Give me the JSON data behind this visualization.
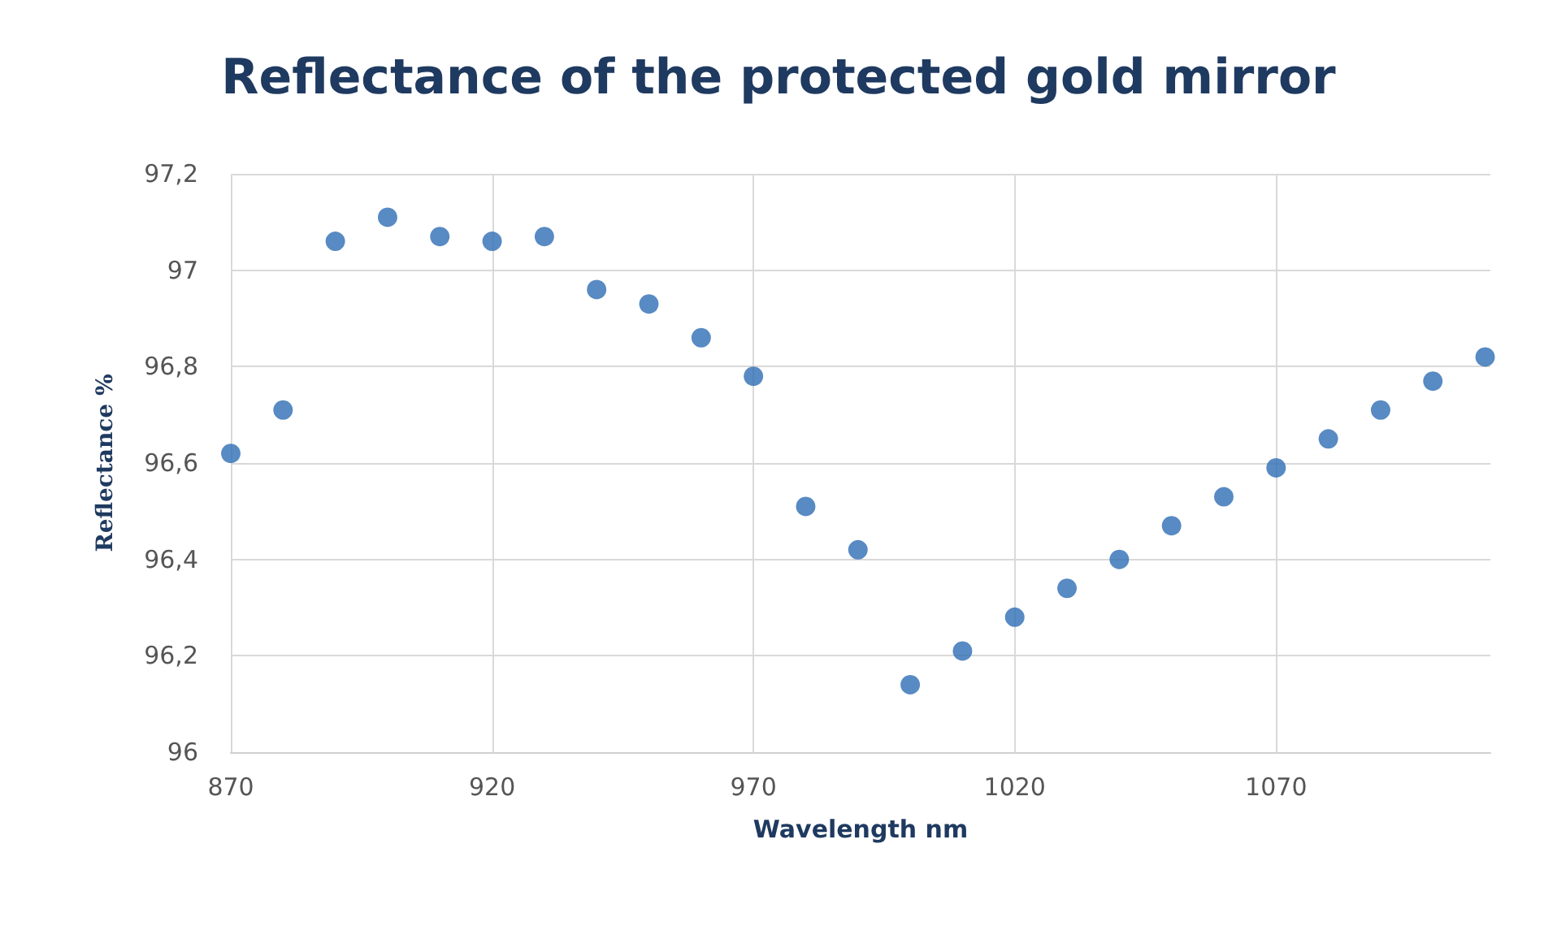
{
  "chart_data": {
    "type": "scatter",
    "title": "Reflectance of the protected gold mirror",
    "xlabel": "Wavelength nm",
    "ylabel": "Reflectance %",
    "x": [
      870,
      880,
      890,
      900,
      910,
      920,
      930,
      940,
      950,
      960,
      970,
      980,
      990,
      1000,
      1010,
      1020,
      1030,
      1040,
      1050,
      1060,
      1070,
      1080,
      1090,
      1100,
      1110
    ],
    "values": [
      96.62,
      96.71,
      97.06,
      97.11,
      97.07,
      97.06,
      97.07,
      96.96,
      96.93,
      96.86,
      96.78,
      96.51,
      96.42,
      96.14,
      96.21,
      96.28,
      96.34,
      96.4,
      96.47,
      96.53,
      96.59,
      96.65,
      96.71,
      96.77,
      96.82
    ],
    "color": "#2e6db4",
    "marker": "circle",
    "xlim": [
      870,
      1111
    ],
    "xticks": [
      870,
      920,
      970,
      1020,
      1070
    ],
    "ylim": [
      96,
      97.2
    ],
    "yticks": [
      96,
      {
        "value": 96.2,
        "label": "96,2"
      },
      {
        "value": 96.4,
        "label": "96,4"
      },
      {
        "value": 96.6,
        "label": "96,6"
      },
      {
        "value": 96.8,
        "label": "96,8"
      },
      97,
      {
        "value": 97.2,
        "label": "97,2"
      }
    ],
    "grid": true
  }
}
